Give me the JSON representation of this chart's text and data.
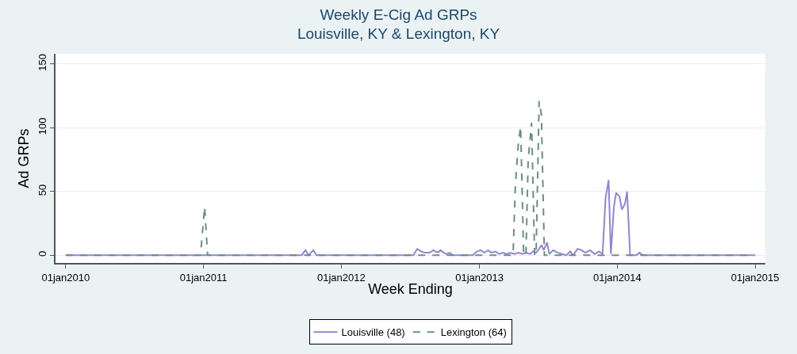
{
  "chart_data": {
    "type": "line",
    "title": "Weekly E-Cig Ad GRPs\nLouisville, KY & Lexington, KY",
    "xlabel": "Week Ending",
    "ylabel": "Ad GRPs",
    "xlim": [
      "2009-12-05",
      "2015-01-28"
    ],
    "ylim": [
      -6,
      158
    ],
    "xticks": [
      {
        "value": "2010-01-01",
        "label": "01jan2010"
      },
      {
        "value": "2011-01-01",
        "label": "01jan2011"
      },
      {
        "value": "2012-01-01",
        "label": "01jan2012"
      },
      {
        "value": "2013-01-01",
        "label": "01jan2013"
      },
      {
        "value": "2014-01-01",
        "label": "01jan2014"
      },
      {
        "value": "2015-01-01",
        "label": "01jan2015"
      }
    ],
    "yticks": [
      0,
      50,
      100,
      150
    ],
    "grid": "y",
    "legend": "bottom",
    "marker": "none",
    "series": [
      {
        "name": "Louisville (48)",
        "color": "#8f86d6",
        "line_style": "solid",
        "x": [
          "2010-01-01",
          "2011-09-18",
          "2011-09-28",
          "2011-10-06",
          "2011-10-19",
          "2011-10-27",
          "2012-07-10",
          "2012-07-20",
          "2012-07-31",
          "2012-08-09",
          "2012-08-22",
          "2012-09-01",
          "2012-09-12",
          "2012-09-20",
          "2012-09-28",
          "2012-10-06",
          "2012-10-14",
          "2012-10-22",
          "2012-12-14",
          "2012-12-25",
          "2013-01-04",
          "2013-01-14",
          "2013-01-24",
          "2013-02-01",
          "2013-02-12",
          "2013-02-22",
          "2013-03-04",
          "2013-03-14",
          "2013-03-24",
          "2013-04-04",
          "2013-04-14",
          "2013-04-24",
          "2013-05-04",
          "2013-05-15",
          "2013-05-23",
          "2013-05-31",
          "2013-06-08",
          "2013-06-14",
          "2013-06-20",
          "2013-06-29",
          "2013-07-05",
          "2013-07-15",
          "2013-07-27",
          "2013-08-08",
          "2013-08-19",
          "2013-08-29",
          "2013-09-06",
          "2013-09-18",
          "2013-09-28",
          "2013-10-09",
          "2013-10-21",
          "2013-11-02",
          "2013-11-14",
          "2013-11-23",
          "2013-12-01",
          "2013-12-09",
          "2013-12-15",
          "2013-12-23",
          "2013-12-29",
          "2014-01-07",
          "2014-01-13",
          "2014-01-21",
          "2014-01-27",
          "2014-02-04",
          "2014-02-20",
          "2014-03-01",
          "2014-03-09",
          "2015-01-01"
        ],
        "values": [
          0,
          0,
          4,
          0,
          4,
          0,
          0,
          5,
          3,
          2,
          2,
          4,
          2,
          4,
          2,
          1,
          2,
          0,
          0,
          3,
          4,
          2,
          4,
          2,
          3,
          1,
          2,
          1,
          2,
          1,
          2,
          1,
          2,
          1,
          3,
          2,
          5,
          8,
          4,
          10,
          1,
          4,
          2,
          1,
          0,
          3,
          0,
          5,
          4,
          2,
          4,
          1,
          3,
          1,
          45,
          59,
          1,
          38,
          49,
          46,
          36,
          40,
          50,
          0,
          0,
          2,
          0,
          0
        ]
      },
      {
        "name": "Lexington (64)",
        "color": "#6a8f80",
        "line_style": "dashed",
        "x": [
          "2010-01-01",
          "2010-12-24",
          "2011-01-04",
          "2011-01-12",
          "2013-03-31",
          "2013-04-06",
          "2013-04-14",
          "2013-04-20",
          "2013-04-28",
          "2013-05-04",
          "2013-05-10",
          "2013-05-19",
          "2013-05-27",
          "2013-05-31",
          "2013-06-08",
          "2013-06-14",
          "2013-06-22",
          "2015-01-01"
        ],
        "values": [
          0,
          0,
          38,
          0,
          0,
          55,
          88,
          101,
          0,
          0,
          75,
          104,
          0,
          0,
          121,
          110,
          0,
          0
        ]
      }
    ]
  }
}
